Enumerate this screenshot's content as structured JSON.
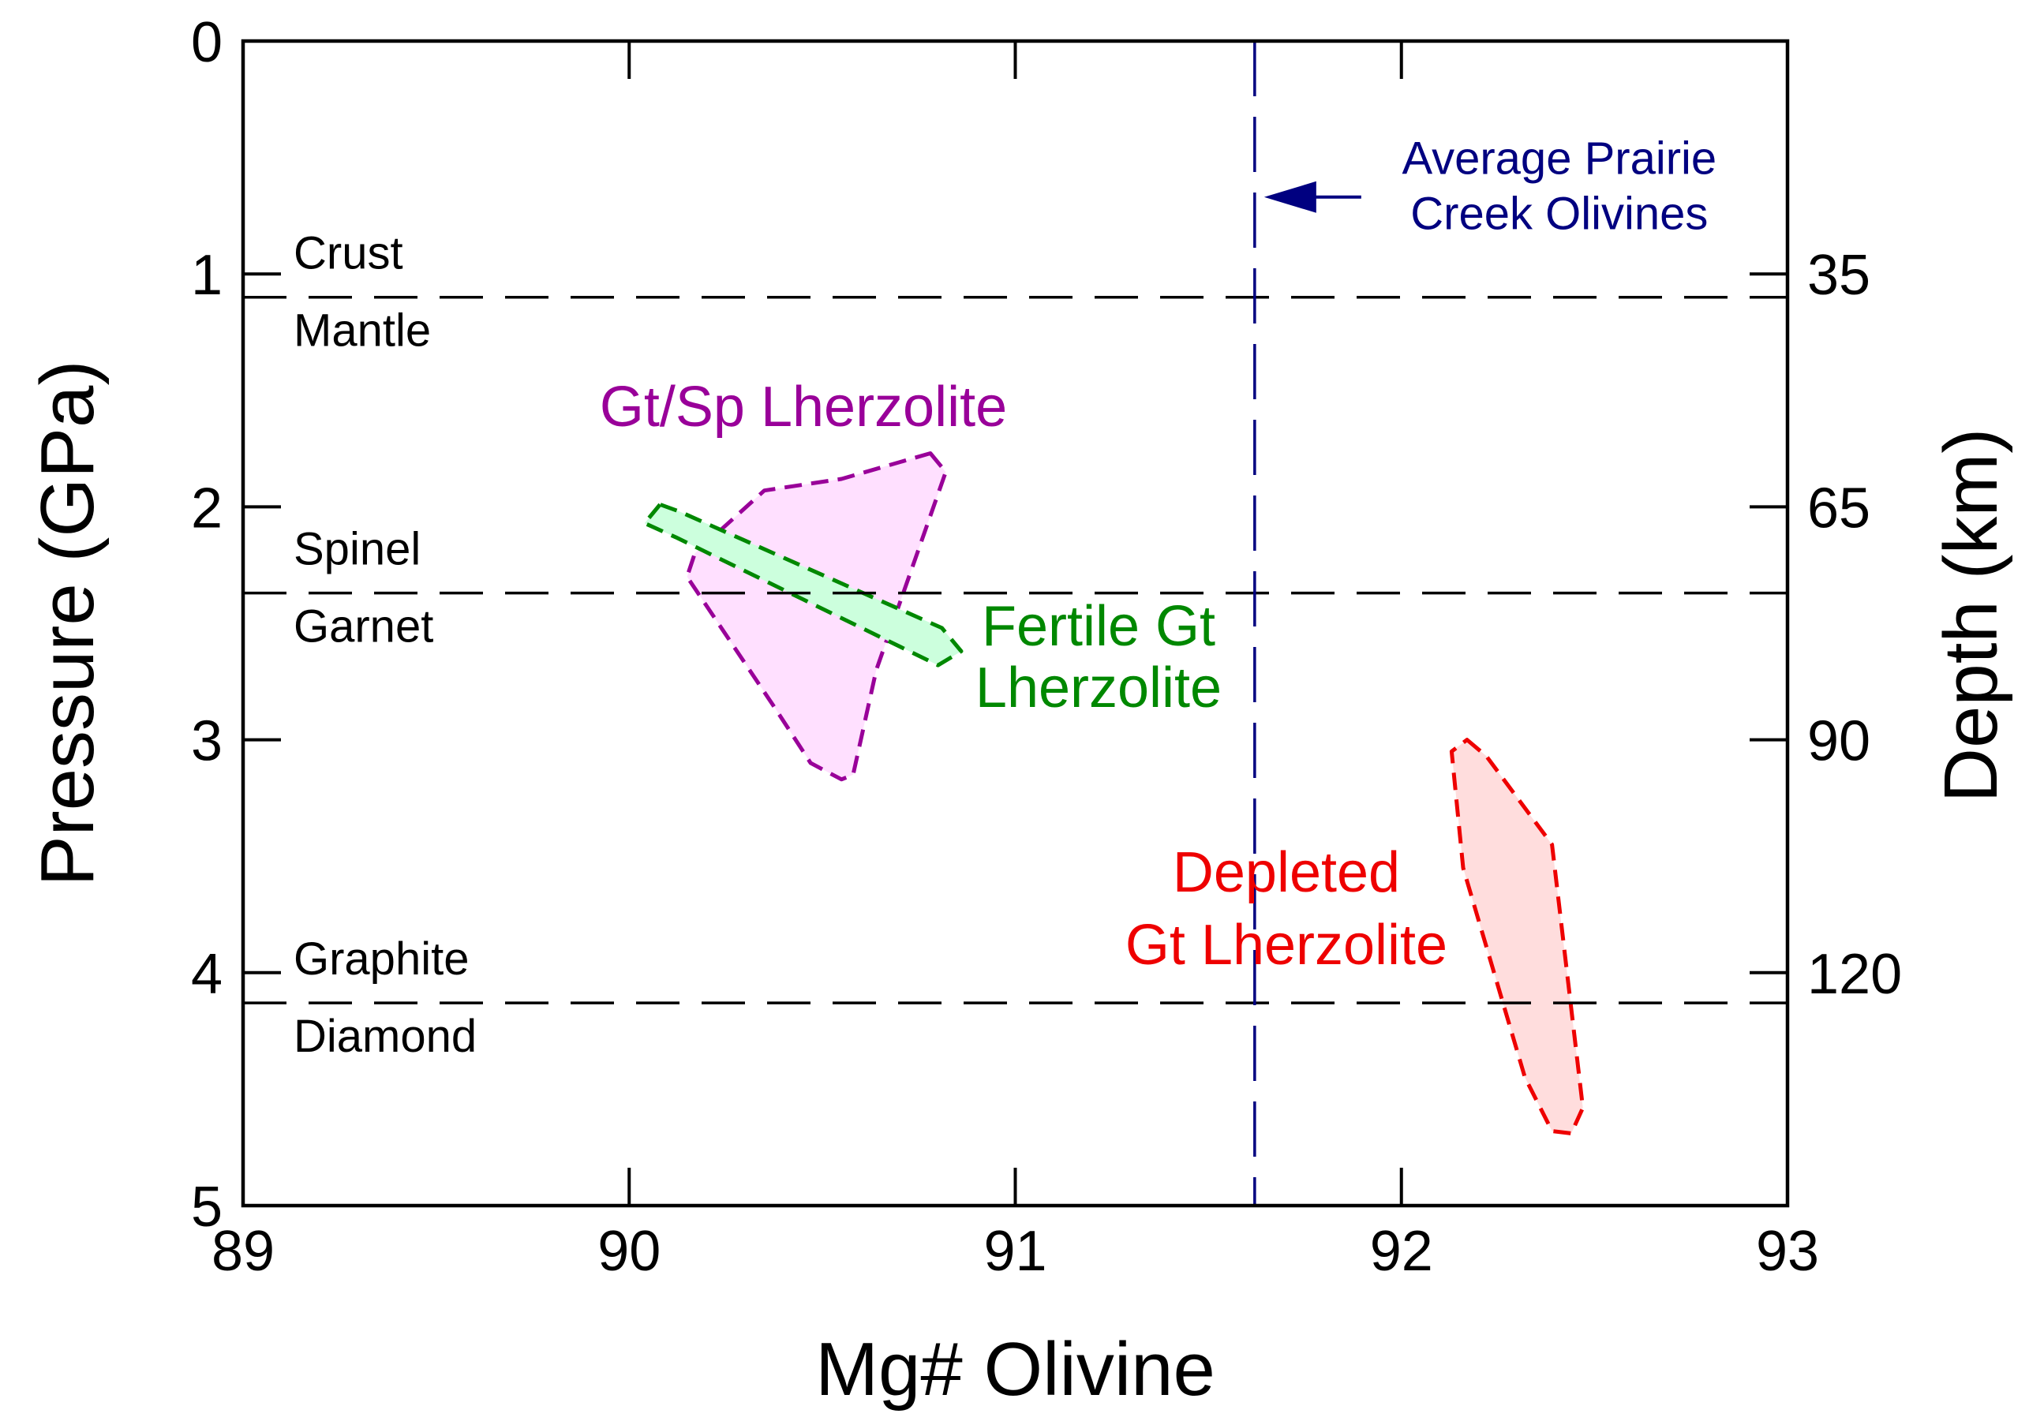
{
  "chart_data": {
    "type": "area",
    "title": "",
    "xlabel": "Mg# Olivine",
    "ylabel": "Pressure (GPa)",
    "y2label": "Depth (km)",
    "xlim": [
      89,
      93
    ],
    "ylim": [
      0,
      5
    ],
    "x_ticks": [
      89,
      90,
      91,
      92,
      93
    ],
    "x_tick_labels": [
      "89",
      "90",
      "91",
      "92",
      "93"
    ],
    "y_ticks": [
      0,
      1,
      2,
      3,
      4,
      5
    ],
    "y_tick_labels": [
      "0",
      "1",
      "2",
      "3",
      "4",
      "5"
    ],
    "y2_ticks": [
      {
        "pressure": 1.0,
        "label": "35"
      },
      {
        "pressure": 2.0,
        "label": "65"
      },
      {
        "pressure": 3.0,
        "label": "90"
      },
      {
        "pressure": 4.0,
        "label": "120"
      }
    ],
    "colors": {
      "axis": "#000000",
      "gt_sp": "#990099",
      "gt_sp_fill": "#ffe0ff",
      "fertile": "#008800",
      "fertile_fill": "#ccffdd",
      "depleted": "#ee0000",
      "depleted_fill": "#ffdddd",
      "average": "#000080"
    },
    "boundaries": [
      {
        "pressure": 1.1,
        "upper": "Crust",
        "lower": "Mantle"
      },
      {
        "pressure": 2.37,
        "upper": "Spinel",
        "lower": "Garnet"
      },
      {
        "pressure": 4.13,
        "upper": "Graphite",
        "lower": "Diamond"
      }
    ],
    "average_line": {
      "x": 91.62,
      "label_lines": [
        "Average Prairie",
        "Creek Olivines"
      ],
      "arrow_pressure": 0.67
    },
    "regions": [
      {
        "name": "Gt/Sp Lherzolite",
        "label_lines": [
          "Gt/Sp Lherzolite"
        ],
        "color_key": "gt_sp",
        "fill_key": "gt_sp_fill",
        "points": [
          [
            90.78,
            1.77
          ],
          [
            90.82,
            1.85
          ],
          [
            90.64,
            2.7
          ],
          [
            90.58,
            3.15
          ],
          [
            90.55,
            3.17
          ],
          [
            90.47,
            3.1
          ],
          [
            90.38,
            2.87
          ],
          [
            90.15,
            2.3
          ],
          [
            90.17,
            2.2
          ],
          [
            90.35,
            1.93
          ],
          [
            90.55,
            1.88
          ]
        ]
      },
      {
        "name": "Fertile Gt Lherzolite",
        "label_lines": [
          "Fertile Gt",
          "Lherzolite"
        ],
        "color_key": "fertile",
        "fill_key": "fertile_fill",
        "points": [
          [
            90.08,
            1.99
          ],
          [
            90.04,
            2.07
          ],
          [
            90.12,
            2.13
          ],
          [
            90.8,
            2.68
          ],
          [
            90.86,
            2.62
          ],
          [
            90.81,
            2.52
          ],
          [
            90.13,
            2.02
          ]
        ]
      },
      {
        "name": "Depleted Gt Lherzolite",
        "label_lines": [
          "Depleted",
          "Gt Lherzolite"
        ],
        "color_key": "depleted",
        "fill_key": "depleted_fill",
        "points": [
          [
            92.17,
            3.0
          ],
          [
            92.22,
            3.07
          ],
          [
            92.39,
            3.45
          ],
          [
            92.47,
            4.58
          ],
          [
            92.44,
            4.69
          ],
          [
            92.39,
            4.68
          ],
          [
            92.32,
            4.45
          ],
          [
            92.16,
            3.55
          ],
          [
            92.13,
            3.05
          ]
        ]
      }
    ]
  }
}
